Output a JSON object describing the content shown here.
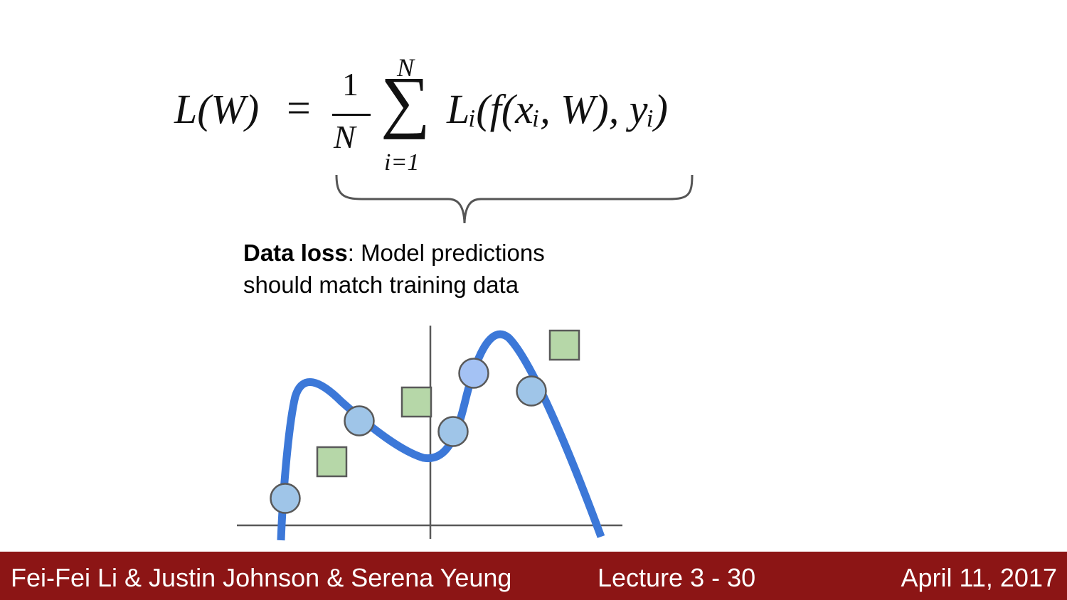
{
  "formula": {
    "lhs": "L(W)",
    "equals": "=",
    "frac_num": "1",
    "frac_den": "N",
    "sum_symbol": "∑",
    "sum_upper": "N",
    "sum_lower": "i=1",
    "term": "Lᵢ(f(xᵢ, W), yᵢ)"
  },
  "caption": {
    "bold": "Data loss",
    "rest_line1": ": Model predictions",
    "line2": "should match training data"
  },
  "plot": {
    "curve_color": "#3c78d8",
    "circle_fill": "#9fc5e8",
    "circle_highlight_fill": "#a4c2f4",
    "square_fill": "#b6d7a8",
    "outline_color": "#595959"
  },
  "footer": {
    "authors": "Fei-Fei Li & Justin Johnson & Serena Yeung",
    "lecture": "Lecture 3 -   30",
    "date": "April 11, 2017",
    "background": "#8c1515"
  }
}
